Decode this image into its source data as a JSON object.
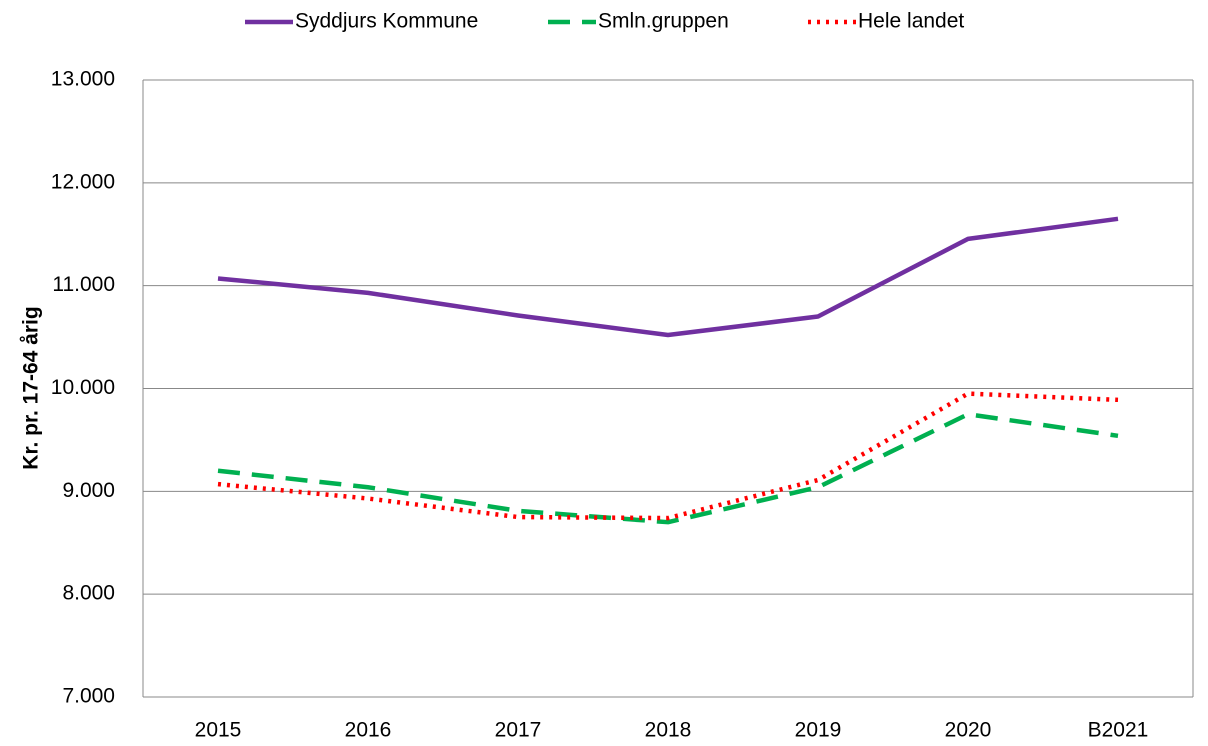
{
  "chart_data": {
    "type": "line",
    "ylabel": "Kr. pr. 17-64 årig",
    "categories": [
      "2015",
      "2016",
      "2017",
      "2018",
      "2019",
      "2020",
      "B2021"
    ],
    "series": [
      {
        "name": "Syddjurs Kommune",
        "color": "#7030a0",
        "style": "solid",
        "values": [
          11070,
          10930,
          10710,
          10520,
          10700,
          11455,
          11650
        ]
      },
      {
        "name": "Smln.gruppen",
        "color": "#00b050",
        "style": "dashed",
        "values": [
          9200,
          9040,
          8810,
          8700,
          9040,
          9750,
          9540
        ]
      },
      {
        "name": "Hele landet",
        "color": "#ff0000",
        "style": "dotted",
        "values": [
          9070,
          8930,
          8750,
          8740,
          9110,
          9950,
          9890
        ]
      }
    ],
    "ylim": [
      7000,
      13000
    ],
    "yticks": [
      {
        "value": 7000,
        "label": "7.000"
      },
      {
        "value": 8000,
        "label": "8.000"
      },
      {
        "value": 9000,
        "label": "9.000"
      },
      {
        "value": 10000,
        "label": "10.000"
      },
      {
        "value": 11000,
        "label": "11.000"
      },
      {
        "value": 12000,
        "label": "12.000"
      },
      {
        "value": 13000,
        "label": "13.000"
      }
    ],
    "grid": true,
    "legend": "top"
  }
}
